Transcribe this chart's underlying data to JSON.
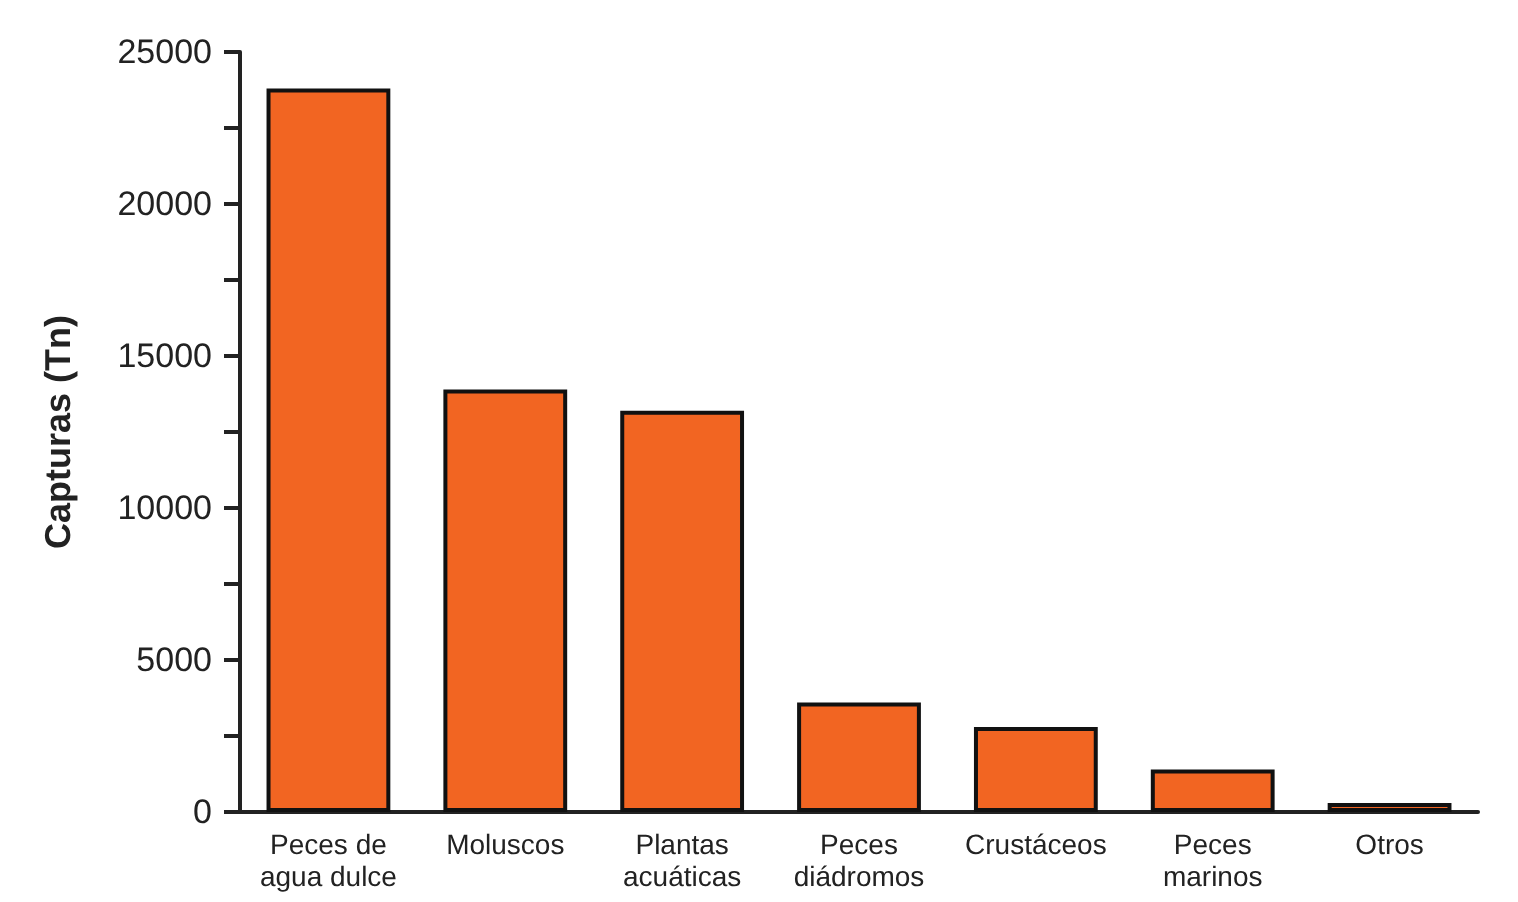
{
  "chart_data": {
    "type": "bar",
    "ylabel": "Capturas (Tn)",
    "categories": [
      "Peces de\nagua dulce",
      "Moluscos",
      "Plantas\nacuáticas",
      "Peces\ndiádromos",
      "Crustáceos",
      "Peces\nmarinos",
      "Otros"
    ],
    "values": [
      23800,
      13900,
      13200,
      3600,
      2800,
      1400,
      300
    ],
    "color": "#f26522",
    "ylim": [
      0,
      25000
    ],
    "yticks": [
      0,
      {
        "value": 2500,
        "label": null
      },
      5000,
      {
        "value": 7500,
        "label": null
      },
      10000,
      {
        "value": 12500,
        "label": null
      },
      15000,
      {
        "value": 17500,
        "label": null
      },
      20000,
      {
        "value": 22500,
        "label": null
      },
      25000
    ],
    "grid": false
  }
}
